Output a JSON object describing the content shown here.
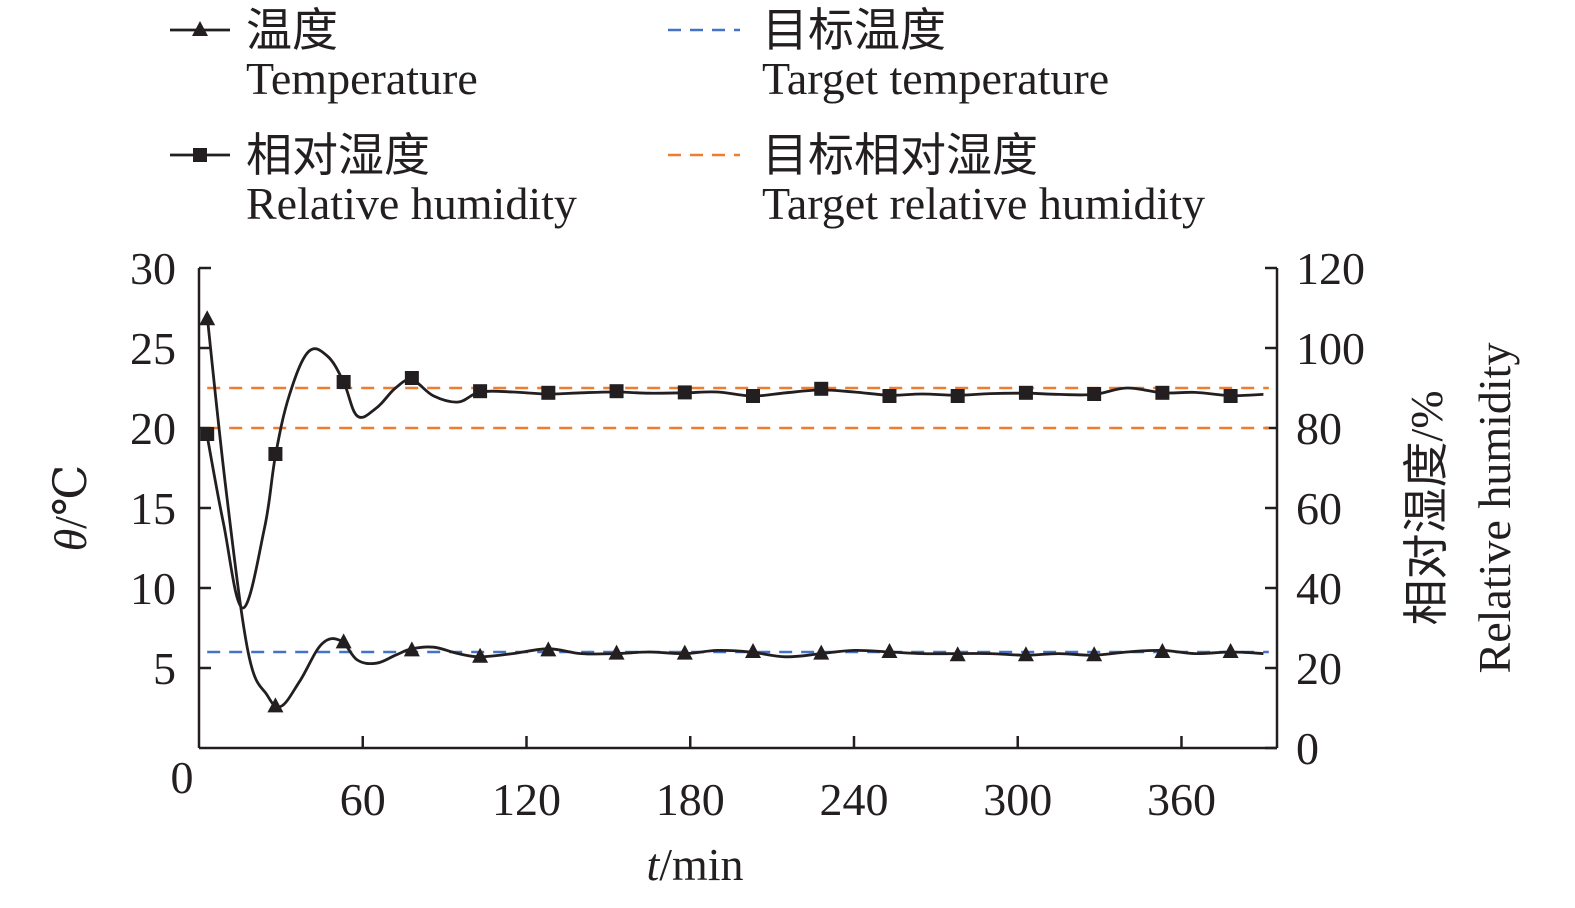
{
  "chart_data": {
    "type": "line",
    "title": "",
    "xlabel_italic": "t",
    "xlabel_unit": "/min",
    "ylabel_left_italic": "θ",
    "ylabel_left_unit": "/℃",
    "ylabel_right_cn": "相对湿度/%",
    "ylabel_right_en": "Relative humidity",
    "xlim": [
      0,
      395
    ],
    "ylim_left": [
      0,
      30
    ],
    "ylim_right": [
      0,
      120
    ],
    "x_origin_label": "0",
    "x_ticks": [
      60,
      120,
      180,
      240,
      300,
      360
    ],
    "x_tick_labels": [
      "60",
      "120",
      "180",
      "240",
      "300",
      "360"
    ],
    "y_left_ticks": [
      5,
      10,
      15,
      20,
      25,
      30
    ],
    "y_left_tick_labels": [
      "5",
      "10",
      "15",
      "20",
      "25",
      "30"
    ],
    "y_right_ticks": [
      0,
      20,
      40,
      60,
      80,
      100,
      120
    ],
    "y_right_tick_labels": [
      "0",
      "20",
      "40",
      "60",
      "80",
      "100",
      "120"
    ],
    "grid": false,
    "legend_position": "top",
    "series": [
      {
        "key": "temperature",
        "name_cn": "温度",
        "name_en": "Temperature",
        "axis": "left",
        "color": "#231f20",
        "marker": "triangle",
        "style": "solid",
        "curve_x": [
          3,
          10,
          18,
          25,
          30,
          37,
          45,
          52,
          58,
          65,
          72,
          78,
          86,
          95,
          103,
          115,
          128,
          140,
          153,
          165,
          178,
          190,
          202,
          215,
          228,
          240,
          253,
          265,
          278,
          290,
          303,
          315,
          328,
          340,
          353,
          365,
          378,
          390
        ],
        "curve_y": [
          27,
          16,
          6,
          3.3,
          2.6,
          4.2,
          6.5,
          6.7,
          5.5,
          5.3,
          5.8,
          6.2,
          6.3,
          5.9,
          5.7,
          5.9,
          6.2,
          5.9,
          5.9,
          6.0,
          5.9,
          6.1,
          6.0,
          5.7,
          5.9,
          6.1,
          6.0,
          5.9,
          5.9,
          5.9,
          5.8,
          5.9,
          5.8,
          6.0,
          6.1,
          5.9,
          6.0,
          5.9
        ],
        "x": [
          3,
          28,
          53,
          78,
          103,
          128,
          153,
          178,
          203,
          228,
          253,
          278,
          303,
          328,
          353,
          378
        ],
        "y": [
          26.8,
          2.6,
          6.6,
          6.1,
          5.7,
          6.1,
          5.9,
          5.9,
          6.0,
          5.9,
          6.0,
          5.8,
          5.8,
          5.8,
          6.0,
          6.0
        ]
      },
      {
        "key": "relative_humidity",
        "name_cn": "相对湿度",
        "name_en": "Relative humidity",
        "axis": "right",
        "color": "#231f20",
        "marker": "square",
        "style": "solid",
        "curve_x": [
          3,
          9,
          16,
          24,
          28,
          33,
          40,
          47,
          53,
          58,
          65,
          72,
          78,
          86,
          95,
          103,
          115,
          128,
          140,
          153,
          165,
          178,
          190,
          203,
          215,
          228,
          240,
          253,
          265,
          278,
          290,
          303,
          315,
          328,
          340,
          353,
          365,
          378,
          390
        ],
        "curve_y": [
          78,
          56,
          35,
          55,
          73,
          88,
          99,
          98,
          91.5,
          83,
          85,
          90,
          92,
          88,
          86.5,
          89,
          89,
          88.5,
          88.8,
          89,
          88.7,
          88.8,
          89,
          88,
          88.8,
          89.5,
          89,
          88.2,
          88.5,
          88.2,
          88.6,
          88.7,
          88.4,
          88.4,
          90,
          88.8,
          88.9,
          88.1,
          88.4
        ],
        "x": [
          3,
          28,
          53,
          78,
          103,
          128,
          153,
          178,
          203,
          228,
          253,
          278,
          303,
          328,
          353,
          378
        ],
        "y": [
          78.5,
          73.5,
          91.5,
          92.5,
          89.2,
          88.8,
          89.2,
          88.9,
          88.0,
          89.8,
          88.0,
          88.0,
          88.8,
          88.5,
          88.8,
          88.0
        ]
      },
      {
        "key": "target_temperature",
        "name_cn": "目标温度",
        "name_en": "Target temperature",
        "axis": "left",
        "color": "#4472c4",
        "style": "dashed",
        "x": [
          3,
          392
        ],
        "y": [
          6,
          6
        ]
      },
      {
        "key": "target_rh_upper",
        "name_cn": "目标相对湿度",
        "name_en": "Target relative humidity",
        "axis": "right",
        "color": "#ed7d31",
        "style": "dashed",
        "x": [
          3,
          392
        ],
        "y": [
          90,
          90
        ]
      },
      {
        "key": "target_rh_lower",
        "name_cn": "",
        "name_en": "",
        "axis": "right",
        "color": "#ed7d31",
        "style": "dashed",
        "x": [
          3,
          392
        ],
        "y": [
          80,
          80
        ]
      }
    ],
    "legend": [
      {
        "series": "temperature",
        "cn": "温度",
        "en": "Temperature"
      },
      {
        "series": "target_temperature",
        "cn": "目标温度",
        "en": "Target temperature"
      },
      {
        "series": "relative_humidity",
        "cn": "相对湿度",
        "en": "Relative humidity"
      },
      {
        "series": "target_rh_upper",
        "cn": "目标相对湿度",
        "en": "Target relative humidity"
      }
    ]
  }
}
